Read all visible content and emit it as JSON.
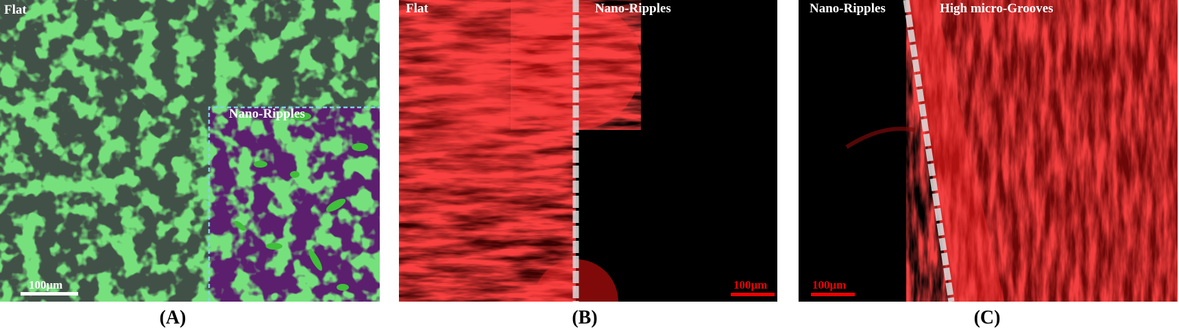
{
  "panels": [
    {
      "label": "(A)",
      "regions": [
        "Flat",
        "Nano-Ripples"
      ],
      "scale_bar": "100μm"
    },
    {
      "label": "(B)",
      "regions": [
        "Flat",
        "Nano-Ripples"
      ],
      "scale_bar": "100μm"
    },
    {
      "label": "(C)",
      "regions": [
        "Nano-Ripples",
        "High micro-Grooves"
      ],
      "scale_bar": "100μm"
    }
  ]
}
